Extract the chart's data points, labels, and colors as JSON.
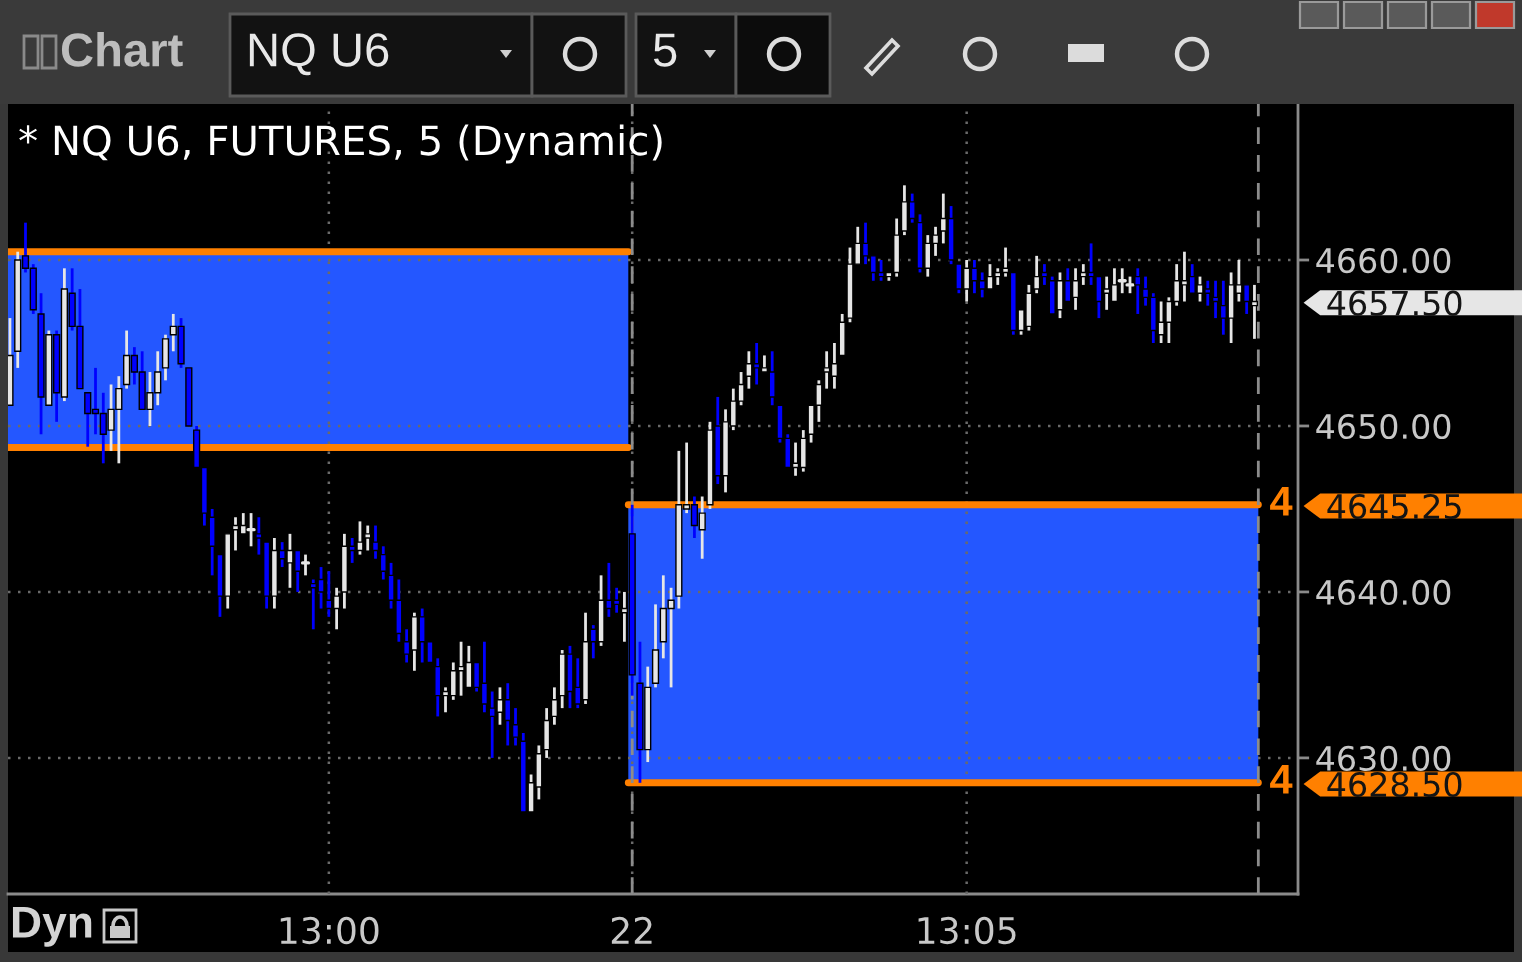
{
  "chart_data": {
    "type": "candlestick",
    "title": "* NQ U6, FUTURES, 5 (Dynamic)",
    "categories": [
      null,
      null,
      null,
      null,
      null,
      null,
      null,
      null,
      null,
      null,
      null,
      null,
      null,
      null,
      null,
      null,
      null,
      null,
      null,
      null,
      null,
      null,
      null,
      null,
      null,
      null,
      null,
      null,
      null,
      null,
      null,
      null,
      null,
      null,
      null,
      null,
      null,
      null,
      null,
      null,
      null,
      "13:00",
      null,
      null,
      null,
      null,
      null,
      null,
      null,
      null,
      null,
      null,
      null,
      null,
      null,
      null,
      null,
      null,
      null,
      null,
      null,
      null,
      null,
      null,
      null,
      null,
      null,
      null,
      null,
      null,
      null,
      null,
      null,
      null,
      null,
      null,
      null,
      null,
      null,
      null,
      "22",
      null,
      null,
      null,
      null,
      null,
      null,
      null,
      null,
      null,
      null,
      null,
      null,
      null,
      null,
      null,
      null,
      null,
      null,
      null,
      null,
      null,
      null,
      null,
      null,
      null,
      null,
      null,
      null,
      null,
      null,
      null,
      null,
      null,
      null,
      null,
      null,
      null,
      null,
      null,
      null,
      null,
      null,
      "13:05",
      null,
      null,
      null,
      null,
      null,
      null,
      null,
      null,
      null,
      null,
      null,
      null,
      null,
      null,
      null,
      null,
      null,
      null,
      null,
      null,
      null,
      null,
      null,
      null,
      null,
      null,
      null,
      null,
      null,
      null,
      null,
      null,
      null,
      null,
      null,
      null,
      null
    ],
    "ohlc": [
      [
        4651.25,
        4656.5,
        4651.25,
        4654.25
      ],
      [
        4654.5,
        4660.5,
        4653.5,
        4660.0
      ],
      [
        4660.25,
        4662.25,
        4659.25,
        4659.5
      ],
      [
        4659.5,
        4659.75,
        4656.75,
        4657.0
      ],
      [
        4656.75,
        4658.0,
        4649.5,
        4651.75
      ],
      [
        4651.25,
        4655.75,
        4651.25,
        4655.5
      ],
      [
        4655.5,
        4655.75,
        4650.25,
        4652.0
      ],
      [
        4651.75,
        4659.5,
        4651.5,
        4658.25
      ],
      [
        4658.0,
        4659.5,
        4655.75,
        4656.0
      ],
      [
        4656.0,
        4658.25,
        4652.25,
        4652.25
      ],
      [
        4652.0,
        4652.0,
        4648.75,
        4650.75
      ],
      [
        4651.0,
        4653.5,
        4649.5,
        4650.75
      ],
      [
        4650.75,
        4652.0,
        4647.75,
        4649.5
      ],
      [
        4649.75,
        4652.5,
        4648.5,
        4651.0
      ],
      [
        4651.0,
        4653.0,
        4647.75,
        4652.25
      ],
      [
        4652.5,
        4655.75,
        4652.25,
        4654.25
      ],
      [
        4654.25,
        4654.75,
        4652.5,
        4653.25
      ],
      [
        4653.25,
        4654.5,
        4651.0,
        4651.0
      ],
      [
        4651.0,
        4653.25,
        4650.0,
        4652.0
      ],
      [
        4652.0,
        4654.5,
        4651.25,
        4653.25
      ],
      [
        4653.5,
        4655.5,
        4652.75,
        4655.25
      ],
      [
        4655.5,
        4656.75,
        4654.5,
        4656.0
      ],
      [
        4656.0,
        4656.5,
        4653.5,
        4653.75
      ],
      [
        4653.5,
        4653.5,
        4650.0,
        4650.0
      ],
      [
        4649.75,
        4650.0,
        4647.5,
        4647.5
      ],
      [
        4647.5,
        4647.5,
        4644.0,
        4644.75
      ],
      [
        4644.5,
        4645.0,
        4641.0,
        4642.75
      ],
      [
        4642.25,
        4642.25,
        4638.5,
        4639.75
      ],
      [
        4639.75,
        4643.5,
        4639.0,
        4643.5
      ],
      [
        4643.75,
        4644.5,
        4642.5,
        4644.0
      ],
      [
        4643.5,
        4644.75,
        4643.5,
        4644.0
      ],
      [
        4643.75,
        4644.75,
        4642.75,
        4643.75
      ],
      [
        4643.5,
        4644.5,
        4642.25,
        4643.25
      ],
      [
        4643.0,
        4643.0,
        4639.0,
        4639.75
      ],
      [
        4639.75,
        4643.25,
        4639.0,
        4642.5
      ],
      [
        4642.5,
        4643.0,
        4641.5,
        4642.0
      ],
      [
        4641.75,
        4643.5,
        4640.25,
        4642.5
      ],
      [
        4642.5,
        4642.5,
        4640.0,
        4641.25
      ],
      [
        4641.75,
        4642.25,
        4641.0,
        4641.75
      ],
      [
        4640.5,
        4640.75,
        4637.75,
        4640.25
      ],
      [
        4640.75,
        4641.5,
        4639.0,
        4640.0
      ],
      [
        4639.5,
        4641.25,
        4638.5,
        4639.0
      ],
      [
        4639.0,
        4640.25,
        4637.75,
        4639.75
      ],
      [
        4640.0,
        4643.5,
        4639.0,
        4642.75
      ],
      [
        4642.75,
        4643.25,
        4641.75,
        4642.5
      ],
      [
        4642.5,
        4644.25,
        4642.25,
        4643.0
      ],
      [
        4643.25,
        4644.0,
        4642.5,
        4643.5
      ],
      [
        4643.0,
        4644.0,
        4642.0,
        4642.5
      ],
      [
        4642.25,
        4642.75,
        4640.75,
        4641.25
      ],
      [
        4641.0,
        4641.75,
        4639.0,
        4639.5
      ],
      [
        4639.5,
        4640.75,
        4637.0,
        4637.5
      ],
      [
        4637.0,
        4637.75,
        4635.75,
        4636.25
      ],
      [
        4636.5,
        4638.75,
        4635.25,
        4638.5
      ],
      [
        4638.5,
        4639.0,
        4635.75,
        4637.0
      ],
      [
        4637.0,
        4637.0,
        4635.75,
        4635.75
      ],
      [
        4635.5,
        4636.0,
        4632.5,
        4633.75
      ],
      [
        4633.75,
        4634.25,
        4632.75,
        4634.0
      ],
      [
        4633.75,
        4635.75,
        4633.5,
        4635.25
      ],
      [
        4635.25,
        4637.0,
        4633.75,
        4635.5
      ],
      [
        4634.25,
        4636.75,
        4634.25,
        4635.75
      ],
      [
        4635.75,
        4635.75,
        4634.0,
        4634.25
      ],
      [
        4634.5,
        4637.0,
        4632.75,
        4633.25
      ],
      [
        4633.0,
        4634.0,
        4630.0,
        4632.5
      ],
      [
        4632.75,
        4634.25,
        4632.0,
        4633.5
      ],
      [
        4633.5,
        4634.5,
        4630.75,
        4632.25
      ],
      [
        4632.0,
        4633.0,
        4630.75,
        4631.25
      ],
      [
        4631.0,
        4631.5,
        4626.75,
        4626.75
      ],
      [
        4626.75,
        4629.0,
        4626.75,
        4628.5
      ],
      [
        4628.25,
        4630.75,
        4627.5,
        4630.25
      ],
      [
        4630.5,
        4633.0,
        4630.0,
        4632.25
      ],
      [
        4632.5,
        4634.25,
        4632.0,
        4633.5
      ],
      [
        4633.75,
        4636.5,
        4633.0,
        4636.25
      ],
      [
        4636.25,
        4636.75,
        4633.0,
        4634.0
      ],
      [
        4634.25,
        4636.0,
        4633.0,
        4633.25
      ],
      [
        4633.5,
        4638.75,
        4633.25,
        4637.0
      ],
      [
        4637.75,
        4638.0,
        4636.0,
        4637.0
      ],
      [
        4637.0,
        4641.0,
        4636.75,
        4639.5
      ],
      [
        4639.5,
        4641.75,
        4638.5,
        4639.0
      ],
      [
        4639.5,
        4640.25,
        4638.75,
        4639.25
      ],
      [
        4638.75,
        4640.0,
        4637.0,
        4639.0
      ],
      [
        4643.5,
        4645.25,
        4633.75,
        4635.0
      ],
      [
        4634.5,
        4637.0,
        4628.5,
        4630.5
      ],
      [
        4630.5,
        4635.5,
        4629.75,
        4634.25
      ],
      [
        4634.5,
        4639.25,
        4634.25,
        4636.5
      ],
      [
        4637.0,
        4641.0,
        4636.0,
        4639.0
      ],
      [
        4639.0,
        4640.25,
        4634.25,
        4639.5
      ],
      [
        4639.75,
        4648.5,
        4639.0,
        4645.25
      ],
      [
        4645.0,
        4649.0,
        4644.75,
        4645.25
      ],
      [
        4645.25,
        4645.75,
        4643.25,
        4644.0
      ],
      [
        4643.75,
        4645.75,
        4642.0,
        4644.75
      ],
      [
        4645.25,
        4650.25,
        4645.0,
        4649.75
      ],
      [
        4650.0,
        4651.75,
        4646.5,
        4647.0
      ],
      [
        4647.0,
        4651.0,
        4646.0,
        4650.25
      ],
      [
        4650.0,
        4652.25,
        4649.75,
        4651.5
      ],
      [
        4651.5,
        4653.25,
        4651.25,
        4652.5
      ],
      [
        4653.0,
        4654.5,
        4652.25,
        4653.75
      ],
      [
        4653.75,
        4655.0,
        4652.5,
        4653.5
      ],
      [
        4653.25,
        4654.25,
        4653.25,
        4653.5
      ],
      [
        4653.25,
        4654.5,
        4651.25,
        4651.75
      ],
      [
        4651.25,
        4651.25,
        4649.0,
        4649.25
      ],
      [
        4649.25,
        4649.5,
        4647.5,
        4647.5
      ],
      [
        4647.5,
        4649.0,
        4647.0,
        4647.75
      ],
      [
        4647.5,
        4649.75,
        4647.25,
        4649.25
      ],
      [
        4649.5,
        4651.25,
        4649.0,
        4651.25
      ],
      [
        4651.25,
        4652.75,
        4650.25,
        4652.5
      ],
      [
        4653.25,
        4654.5,
        4652.25,
        4653.5
      ],
      [
        4653.0,
        4655.0,
        4652.25,
        4653.75
      ],
      [
        4654.25,
        4656.75,
        4654.25,
        4656.25
      ],
      [
        4656.5,
        4660.75,
        4656.25,
        4659.75
      ],
      [
        4659.75,
        4662.0,
        4659.75,
        4661.0
      ],
      [
        4661.0,
        4662.25,
        4659.75,
        4660.25
      ],
      [
        4660.25,
        4660.25,
        4658.75,
        4659.25
      ],
      [
        4659.25,
        4660.0,
        4658.75,
        4659.0
      ],
      [
        4659.0,
        4659.25,
        4658.75,
        4659.25
      ],
      [
        4659.25,
        4662.5,
        4659.0,
        4661.5
      ],
      [
        4661.75,
        4664.5,
        4661.5,
        4663.5
      ],
      [
        4663.5,
        4664.0,
        4662.25,
        4662.5
      ],
      [
        4662.25,
        4662.75,
        4659.25,
        4659.5
      ],
      [
        4659.5,
        4661.5,
        4659.0,
        4661.0
      ],
      [
        4661.0,
        4662.0,
        4660.25,
        4661.5
      ],
      [
        4661.75,
        4664.0,
        4661.0,
        4662.5
      ],
      [
        4662.5,
        4663.25,
        4659.75,
        4660.0
      ],
      [
        4659.75,
        4659.75,
        4658.0,
        4658.25
      ],
      [
        4658.25,
        4660.0,
        4657.5,
        4659.5
      ],
      [
        4659.5,
        4660.0,
        4658.0,
        4658.75
      ],
      [
        4658.75,
        4659.25,
        4657.75,
        4658.25
      ],
      [
        4658.25,
        4659.75,
        4658.25,
        4659.0
      ],
      [
        4659.0,
        4659.5,
        4658.5,
        4659.25
      ],
      [
        4659.25,
        4660.75,
        4659.0,
        4659.5
      ],
      [
        4659.25,
        4659.25,
        4655.5,
        4655.75
      ],
      [
        4655.75,
        4657.0,
        4655.5,
        4657.0
      ],
      [
        4656.0,
        4658.5,
        4655.75,
        4658.0
      ],
      [
        4658.25,
        4660.25,
        4658.0,
        4659.0
      ],
      [
        4659.25,
        4659.75,
        4658.5,
        4659.0
      ],
      [
        4658.75,
        4659.0,
        4656.75,
        4656.75
      ],
      [
        4657.0,
        4659.25,
        4656.5,
        4658.75
      ],
      [
        4658.75,
        4659.5,
        4657.5,
        4657.5
      ],
      [
        4657.75,
        4659.5,
        4657.0,
        4658.75
      ],
      [
        4659.0,
        4659.75,
        4658.5,
        4659.25
      ],
      [
        4659.25,
        4661.0,
        4658.5,
        4659.0
      ],
      [
        4659.0,
        4659.0,
        4656.5,
        4657.5
      ],
      [
        4658.0,
        4659.0,
        4657.0,
        4658.25
      ],
      [
        4657.5,
        4659.5,
        4657.5,
        4658.5
      ],
      [
        4658.75,
        4659.5,
        4658.0,
        4658.75
      ],
      [
        4658.5,
        4659.0,
        4658.0,
        4658.5
      ],
      [
        4659.0,
        4659.5,
        4656.75,
        4658.5
      ],
      [
        4658.25,
        4659.0,
        4657.25,
        4657.75
      ],
      [
        4657.75,
        4658.0,
        4655.0,
        4655.75
      ],
      [
        4655.5,
        4657.5,
        4655.0,
        4656.25
      ],
      [
        4656.25,
        4657.75,
        4655.0,
        4657.5
      ],
      [
        4657.5,
        4659.75,
        4657.25,
        4658.75
      ],
      [
        4658.5,
        4660.5,
        4657.5,
        4658.75
      ],
      [
        4659.0,
        4659.75,
        4658.0,
        4658.0
      ],
      [
        4658.0,
        4659.0,
        4657.5,
        4658.5
      ],
      [
        4658.25,
        4658.75,
        4657.25,
        4658.0
      ],
      [
        4657.75,
        4658.75,
        4656.5,
        4657.5
      ],
      [
        4657.25,
        4658.75,
        4655.5,
        4656.5
      ],
      [
        4656.5,
        4659.25,
        4655.0,
        4658.5
      ],
      [
        4658.0,
        4660.0,
        4657.5,
        4658.5
      ],
      [
        4658.5,
        4658.5,
        4656.75,
        4657.5
      ],
      [
        4657.25,
        4658.5,
        4655.25,
        4657.5
      ]
    ],
    "colors": [
      "#e6e6e6",
      "#e6e6e6",
      "#0000ff",
      "#0000ff",
      "#0000ff",
      "#e6e6e6",
      "#0000ff",
      "#e6e6e6",
      "#0000ff",
      "#0000ff",
      "#0000ff",
      "#0000ff",
      "#0000ff",
      "#e6e6e6",
      "#e6e6e6",
      "#e6e6e6",
      "#0000ff",
      "#0000ff",
      "#e6e6e6",
      "#e6e6e6",
      "#e6e6e6",
      "#e6e6e6",
      "#0000ff",
      "#0000ff",
      "#0000ff",
      "#0000ff",
      "#0000ff",
      "#0000ff",
      "#e6e6e6",
      "#e6e6e6",
      "#e6e6e6",
      "#e6e6e6",
      "#0000ff",
      "#0000ff",
      "#e6e6e6",
      "#0000ff",
      "#e6e6e6",
      "#0000ff",
      "#e6e6e6",
      "#0000ff",
      "#0000ff",
      "#0000ff",
      "#e6e6e6",
      "#e6e6e6",
      "#0000ff",
      "#e6e6e6",
      "#e6e6e6",
      "#0000ff",
      "#0000ff",
      "#0000ff",
      "#0000ff",
      "#0000ff",
      "#e6e6e6",
      "#0000ff",
      "#0000ff",
      "#0000ff",
      "#e6e6e6",
      "#e6e6e6",
      "#e6e6e6",
      "#e6e6e6",
      "#0000ff",
      "#0000ff",
      "#0000ff",
      "#e6e6e6",
      "#0000ff",
      "#0000ff",
      "#0000ff",
      "#e6e6e6",
      "#e6e6e6",
      "#e6e6e6",
      "#e6e6e6",
      "#e6e6e6",
      "#0000ff",
      "#0000ff",
      "#e6e6e6",
      "#0000ff",
      "#e6e6e6",
      "#0000ff",
      "#0000ff",
      "#e6e6e6",
      "#0000ff",
      "#0000ff",
      "#e6e6e6",
      "#e6e6e6",
      "#e6e6e6",
      "#e6e6e6",
      "#e6e6e6",
      "#e6e6e6",
      "#0000ff",
      "#e6e6e6",
      "#e6e6e6",
      "#0000ff",
      "#e6e6e6",
      "#e6e6e6",
      "#e6e6e6",
      "#e6e6e6",
      "#0000ff",
      "#e6e6e6",
      "#0000ff",
      "#0000ff",
      "#0000ff",
      "#e6e6e6",
      "#e6e6e6",
      "#e6e6e6",
      "#e6e6e6",
      "#e6e6e6",
      "#e6e6e6",
      "#e6e6e6",
      "#e6e6e6",
      "#e6e6e6",
      "#0000ff",
      "#0000ff",
      "#0000ff",
      "#e6e6e6",
      "#e6e6e6",
      "#e6e6e6",
      "#0000ff",
      "#0000ff",
      "#e6e6e6",
      "#e6e6e6",
      "#e6e6e6",
      "#0000ff",
      "#0000ff",
      "#e6e6e6",
      "#0000ff",
      "#0000ff",
      "#e6e6e6",
      "#e6e6e6",
      "#e6e6e6",
      "#0000ff",
      "#e6e6e6",
      "#e6e6e6",
      "#e6e6e6",
      "#0000ff",
      "#0000ff",
      "#e6e6e6",
      "#0000ff",
      "#e6e6e6",
      "#e6e6e6",
      "#0000ff",
      "#0000ff",
      "#e6e6e6",
      "#e6e6e6",
      "#e6e6e6",
      "#e6e6e6",
      "#0000ff",
      "#0000ff",
      "#0000ff",
      "#e6e6e6",
      "#e6e6e6",
      "#e6e6e6",
      "#e6e6e6",
      "#0000ff",
      "#e6e6e6",
      "#0000ff",
      "#0000ff",
      "#0000ff",
      "#e6e6e6",
      "#e6e6e6",
      "#0000ff",
      "#e6e6e6"
    ],
    "value_labels": [
      null,
      null,
      null,
      null,
      null,
      null,
      null,
      null,
      null,
      null,
      null,
      null,
      null,
      null,
      null,
      null,
      null,
      null,
      null,
      null,
      null,
      null,
      null,
      null,
      null,
      null,
      null,
      null,
      null,
      null,
      null,
      null,
      null,
      null,
      null,
      null,
      null,
      null,
      null,
      null,
      null,
      null,
      null,
      null,
      null,
      null,
      null,
      null,
      null,
      null,
      null,
      null,
      null,
      null,
      null,
      null,
      null,
      null,
      null,
      null,
      null,
      null,
      null,
      null,
      null,
      null,
      null,
      null,
      null,
      null,
      null,
      null,
      null,
      null,
      null,
      null,
      null,
      null,
      null,
      null,
      null,
      null,
      null,
      null,
      null,
      null,
      null,
      null,
      null,
      null,
      null,
      null,
      null,
      null,
      null,
      null,
      null,
      null,
      null,
      null,
      null,
      null,
      null,
      null,
      null,
      null,
      null,
      null,
      null,
      null,
      null,
      null,
      null,
      null,
      null,
      null,
      null,
      null,
      null,
      null,
      null,
      null,
      null,
      null,
      null,
      null,
      null,
      null,
      null,
      null,
      null,
      null,
      null,
      null,
      null,
      null,
      null,
      null,
      null,
      null,
      null,
      null,
      null,
      null,
      null,
      null,
      null,
      null,
      null,
      null,
      null,
      null,
      null,
      null,
      null,
      null,
      null,
      null,
      null,
      null,
      "4657.50"
    ],
    "series": [
      {
        "type": "line",
        "color": "#ff8000",
        "values": [
          4660.5,
          4660.5,
          4660.5,
          4660.5,
          4660.5,
          4660.5,
          4660.5,
          4660.5,
          4660.5,
          4660.5,
          4660.5,
          4660.5,
          4660.5,
          4660.5,
          4660.5,
          4660.5,
          4660.5,
          4660.5,
          4660.5,
          4660.5,
          4660.5,
          4660.5,
          4660.5,
          4660.5,
          4660.5,
          4660.5,
          4660.5,
          4660.5,
          4660.5,
          4660.5,
          4660.5,
          4660.5,
          4660.5,
          4660.5,
          4660.5,
          4660.5,
          4660.5,
          4660.5,
          4660.5,
          4660.5,
          4660.5,
          4660.5,
          4660.5,
          4660.5,
          4660.5,
          4660.5,
          4660.5,
          4660.5,
          4660.5,
          4660.5,
          4660.5,
          4660.5,
          4660.5,
          4660.5,
          4660.5,
          4660.5,
          4660.5,
          4660.5,
          4660.5,
          4660.5,
          4660.5,
          4660.5,
          4660.5,
          4660.5,
          4660.5,
          4660.5,
          4660.5,
          4660.5,
          4660.5,
          4660.5,
          4660.5,
          4660.5,
          4660.5,
          4660.5,
          4660.5,
          4660.5,
          4660.5,
          4660.5,
          4660.5,
          4660.5,
          null,
          null,
          null,
          null,
          null,
          null,
          null,
          null,
          null,
          null,
          null,
          null,
          null,
          null,
          null,
          null,
          null,
          null,
          null,
          null,
          null,
          null,
          null,
          null,
          null,
          null,
          null,
          null,
          null,
          null,
          null,
          null,
          null,
          null,
          null,
          null,
          null,
          null,
          null,
          null,
          null,
          null,
          null,
          null,
          null,
          null,
          null,
          null,
          null,
          null,
          null,
          null,
          null,
          null,
          null,
          null,
          null,
          null,
          null,
          null,
          null,
          null,
          null,
          null,
          null,
          null,
          null,
          null,
          null,
          null,
          null,
          null,
          null,
          null,
          null,
          null,
          null,
          null,
          null,
          null,
          null
        ]
      },
      {
        "type": "line",
        "color": "#ff8000",
        "values": [
          4648.7,
          4648.7,
          4648.7,
          4648.7,
          4648.7,
          4648.7,
          4648.7,
          4648.7,
          4648.7,
          4648.7,
          4648.7,
          4648.7,
          4648.7,
          4648.7,
          4648.7,
          4648.7,
          4648.7,
          4648.7,
          4648.7,
          4648.7,
          4648.7,
          4648.7,
          4648.7,
          4648.7,
          4648.7,
          4648.7,
          4648.7,
          4648.7,
          4648.7,
          4648.7,
          4648.7,
          4648.7,
          4648.7,
          4648.7,
          4648.7,
          4648.7,
          4648.7,
          4648.7,
          4648.7,
          4648.7,
          4648.7,
          4648.7,
          4648.7,
          4648.7,
          4648.7,
          4648.7,
          4648.7,
          4648.7,
          4648.7,
          4648.7,
          4648.7,
          4648.7,
          4648.7,
          4648.7,
          4648.7,
          4648.7,
          4648.7,
          4648.7,
          4648.7,
          4648.7,
          4648.7,
          4648.7,
          4648.7,
          4648.7,
          4648.7,
          4648.7,
          4648.7,
          4648.7,
          4648.7,
          4648.7,
          4648.7,
          4648.7,
          4648.7,
          4648.7,
          4648.7,
          4648.7,
          4648.7,
          4648.7,
          4648.7,
          4648.7,
          null,
          null,
          null,
          null,
          null,
          null,
          null,
          null,
          null,
          null,
          null,
          null,
          null,
          null,
          null,
          null,
          null,
          null,
          null,
          null,
          null,
          null,
          null,
          null,
          null,
          null,
          null,
          null,
          null,
          null,
          null,
          null,
          null,
          null,
          null,
          null,
          null,
          null,
          null,
          null,
          null,
          null,
          null,
          null,
          null,
          null,
          null,
          null,
          null,
          null,
          null,
          null,
          null,
          null,
          null,
          null,
          null,
          null,
          null,
          null,
          null,
          null,
          null,
          null,
          null,
          null,
          null,
          null,
          null,
          null,
          null,
          null,
          null,
          null,
          null,
          null,
          null,
          null,
          null,
          null,
          null
        ]
      },
      {
        "type": "line",
        "name": "4",
        "color": "#ff8000",
        "values": [
          null,
          null,
          null,
          null,
          null,
          null,
          null,
          null,
          null,
          null,
          null,
          null,
          null,
          null,
          null,
          null,
          null,
          null,
          null,
          null,
          null,
          null,
          null,
          null,
          null,
          null,
          null,
          null,
          null,
          null,
          null,
          null,
          null,
          null,
          null,
          null,
          null,
          null,
          null,
          null,
          null,
          null,
          null,
          null,
          null,
          null,
          null,
          null,
          null,
          null,
          null,
          null,
          null,
          null,
          null,
          null,
          null,
          null,
          null,
          null,
          null,
          null,
          null,
          null,
          null,
          null,
          null,
          null,
          null,
          null,
          null,
          null,
          null,
          null,
          null,
          null,
          null,
          null,
          null,
          null,
          4645.25,
          4645.25,
          4645.25,
          4645.25,
          4645.25,
          4645.25,
          4645.25,
          4645.25,
          4645.25,
          4645.25,
          4645.25,
          4645.25,
          4645.25,
          4645.25,
          4645.25,
          4645.25,
          4645.25,
          4645.25,
          4645.25,
          4645.25,
          4645.25,
          4645.25,
          4645.25,
          4645.25,
          4645.25,
          4645.25,
          4645.25,
          4645.25,
          4645.25,
          4645.25,
          4645.25,
          4645.25,
          4645.25,
          4645.25,
          4645.25,
          4645.25,
          4645.25,
          4645.25,
          4645.25,
          4645.25,
          4645.25,
          4645.25,
          4645.25,
          4645.25,
          4645.25,
          4645.25,
          4645.25,
          4645.25,
          4645.25,
          4645.25,
          4645.25,
          4645.25,
          4645.25,
          4645.25,
          4645.25,
          4645.25,
          4645.25,
          4645.25,
          4645.25,
          4645.25,
          4645.25,
          4645.25,
          4645.25,
          4645.25,
          4645.25,
          4645.25,
          4645.25,
          4645.25,
          4645.25,
          4645.25,
          4645.25,
          4645.25,
          4645.25,
          4645.25,
          4645.25,
          4645.25,
          4645.25,
          4645.25,
          4645.25,
          4645.25,
          4645.25
        ]
      },
      {
        "type": "line",
        "name": "4",
        "color": "#ff8000",
        "values": [
          null,
          null,
          null,
          null,
          null,
          null,
          null,
          null,
          null,
          null,
          null,
          null,
          null,
          null,
          null,
          null,
          null,
          null,
          null,
          null,
          null,
          null,
          null,
          null,
          null,
          null,
          null,
          null,
          null,
          null,
          null,
          null,
          null,
          null,
          null,
          null,
          null,
          null,
          null,
          null,
          null,
          null,
          null,
          null,
          null,
          null,
          null,
          null,
          null,
          null,
          null,
          null,
          null,
          null,
          null,
          null,
          null,
          null,
          null,
          null,
          null,
          null,
          null,
          null,
          null,
          null,
          null,
          null,
          null,
          null,
          null,
          null,
          null,
          null,
          null,
          null,
          null,
          null,
          null,
          null,
          4628.5,
          4628.5,
          4628.5,
          4628.5,
          4628.5,
          4628.5,
          4628.5,
          4628.5,
          4628.5,
          4628.5,
          4628.5,
          4628.5,
          4628.5,
          4628.5,
          4628.5,
          4628.5,
          4628.5,
          4628.5,
          4628.5,
          4628.5,
          4628.5,
          4628.5,
          4628.5,
          4628.5,
          4628.5,
          4628.5,
          4628.5,
          4628.5,
          4628.5,
          4628.5,
          4628.5,
          4628.5,
          4628.5,
          4628.5,
          4628.5,
          4628.5,
          4628.5,
          4628.5,
          4628.5,
          4628.5,
          4628.5,
          4628.5,
          4628.5,
          4628.5,
          4628.5,
          4628.5,
          4628.5,
          4628.5,
          4628.5,
          4628.5,
          4628.5,
          4628.5,
          4628.5,
          4628.5,
          4628.5,
          4628.5,
          4628.5,
          4628.5,
          4628.5,
          4628.5,
          4628.5,
          4628.5,
          4628.5,
          4628.5,
          4628.5,
          4628.5,
          4628.5,
          4628.5,
          4628.5,
          4628.5,
          4628.5,
          4628.5,
          4628.5,
          4628.5,
          4628.5,
          4628.5,
          4628.5,
          4628.5,
          4628.5,
          4628.5,
          4628.5
        ]
      }
    ],
    "bands": [
      {
        "axis": "y",
        "from": 4648.7,
        "to": 4660.5,
        "color": "#2457ff"
      },
      {
        "axis": "y",
        "from": 4628.5,
        "to": 4645.25,
        "color": "#2457ff"
      }
    ],
    "ylim": [
      4621.8,
      4669.4
    ],
    "yticks": [
      {
        "value": 4630,
        "label": "4630.00"
      },
      {
        "value": 4640,
        "label": "4640.00"
      },
      {
        "value": 4650,
        "label": "4650.00"
      },
      {
        "value": 4660,
        "label": "4660.00"
      }
    ],
    "grid": true,
    "ref_lines": [
      {
        "axis": "x",
        "value": "22",
        "line_style": "dashed",
        "color": "#8c8c8c"
      }
    ],
    "annotations": [
      "Chart",
      "NQ U6",
      "5",
      "Dyn",
      "4645.25",
      "4628.50"
    ]
  }
}
